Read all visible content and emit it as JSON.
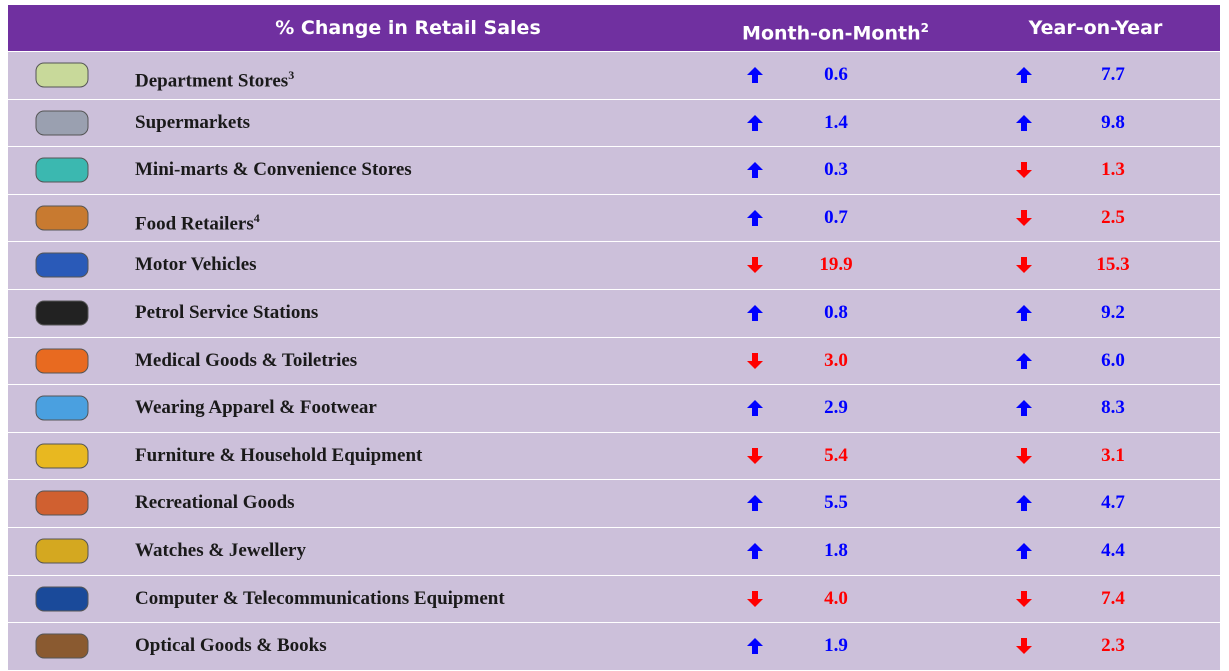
{
  "header": {
    "title": "% Change in Retail Sales",
    "mom": "Month-on-Month",
    "mom_note": "2",
    "yoy": "Year-on-Year"
  },
  "rows": [
    {
      "name": "Department Stores",
      "note": "3",
      "mom": {
        "value": "0.6",
        "direction": "up"
      },
      "yoy": {
        "value": "7.7",
        "direction": "up"
      }
    },
    {
      "name": "Supermarkets",
      "mom": {
        "value": "1.4",
        "direction": "up"
      },
      "yoy": {
        "value": "9.8",
        "direction": "up"
      }
    },
    {
      "name": "Mini-marts & Convenience Stores",
      "mom": {
        "value": "0.3",
        "direction": "up"
      },
      "yoy": {
        "value": "1.3",
        "direction": "down"
      }
    },
    {
      "name": "Food Retailers",
      "note": "4",
      "mom": {
        "value": "0.7",
        "direction": "up"
      },
      "yoy": {
        "value": "2.5",
        "direction": "down"
      }
    },
    {
      "name": "Motor Vehicles",
      "mom": {
        "value": "19.9",
        "direction": "down"
      },
      "yoy": {
        "value": "15.3",
        "direction": "down"
      }
    },
    {
      "name": "Petrol Service Stations",
      "mom": {
        "value": "0.8",
        "direction": "up"
      },
      "yoy": {
        "value": "9.2",
        "direction": "up"
      }
    },
    {
      "name": "Medical Goods & Toiletries",
      "mom": {
        "value": "3.0",
        "direction": "down"
      },
      "yoy": {
        "value": "6.0",
        "direction": "up"
      }
    },
    {
      "name": "Wearing Apparel & Footwear",
      "mom": {
        "value": "2.9",
        "direction": "up"
      },
      "yoy": {
        "value": "8.3",
        "direction": "up"
      }
    },
    {
      "name": "Furniture & Household Equipment",
      "mom": {
        "value": "5.4",
        "direction": "down"
      },
      "yoy": {
        "value": "3.1",
        "direction": "down"
      }
    },
    {
      "name": "Recreational Goods",
      "mom": {
        "value": "5.5",
        "direction": "up"
      },
      "yoy": {
        "value": "4.7",
        "direction": "up"
      }
    },
    {
      "name": "Watches & Jewellery",
      "mom": {
        "value": "1.8",
        "direction": "up"
      },
      "yoy": {
        "value": "4.4",
        "direction": "up"
      }
    },
    {
      "name": "Computer & Telecommunications Equipment",
      "mom": {
        "value": "4.0",
        "direction": "down"
      },
      "yoy": {
        "value": "7.4",
        "direction": "down"
      }
    },
    {
      "name": "Optical Goods & Books",
      "mom": {
        "value": "1.9",
        "direction": "up"
      },
      "yoy": {
        "value": "2.3",
        "direction": "down"
      }
    }
  ]
}
